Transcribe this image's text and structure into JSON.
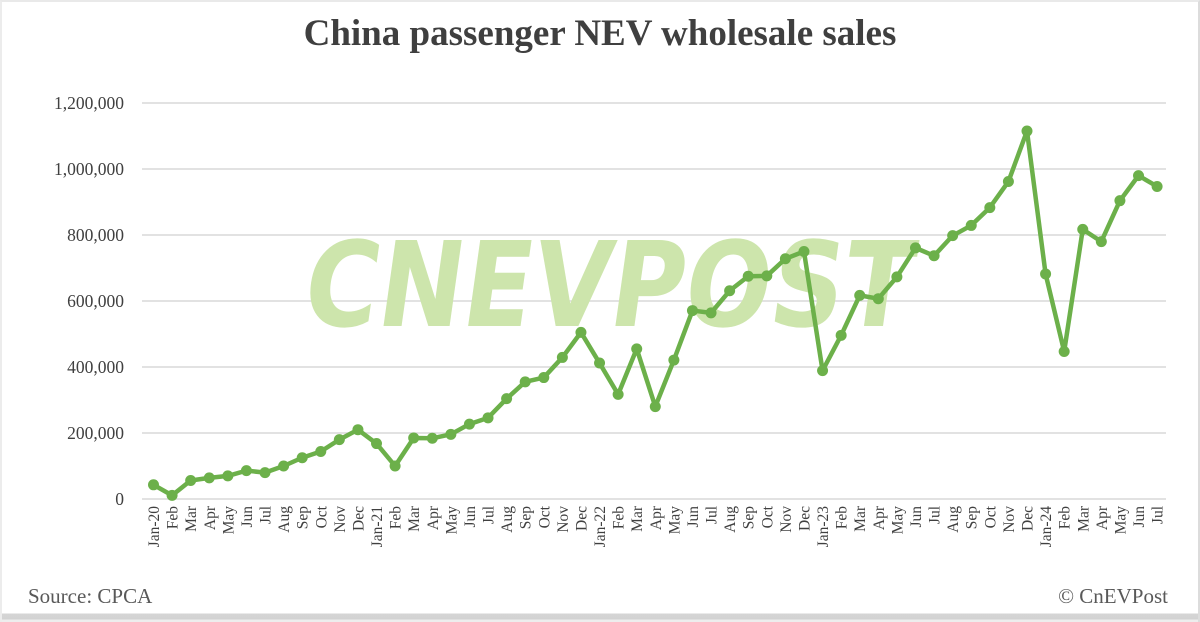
{
  "title": "China passenger NEV wholesale sales",
  "watermark": "CNEVPOST",
  "footer": {
    "source": "Source: CPCA",
    "credit": "© CnEVPost"
  },
  "colors": {
    "line": "#6CB04A",
    "marker": "#6CB04A",
    "watermark": "#CDE5AC",
    "gridline": "#D9D9D9",
    "title_text": "#3F3F3F",
    "axis_text": "#404040",
    "footer_text": "#595959"
  },
  "chart_data": {
    "type": "line",
    "title": "China passenger NEV wholesale sales",
    "xlabel": "",
    "ylabel": "",
    "ylim": [
      0,
      1200000
    ],
    "y_ticks": [
      0,
      200000,
      400000,
      600000,
      800000,
      1000000,
      1200000
    ],
    "grid": true,
    "legend_position": "none",
    "marker": "circle",
    "x_labels": [
      "Jan-20",
      "Feb",
      "Mar",
      "Apr",
      "May",
      "Jun",
      "Jul",
      "Aug",
      "Sep",
      "Oct",
      "Nov",
      "Dec",
      "Jan-21",
      "Feb",
      "Mar",
      "Apr",
      "May",
      "Jun",
      "Jul",
      "Aug",
      "Sep",
      "Oct",
      "Nov",
      "Dec",
      "Jan-22",
      "Feb",
      "Mar",
      "Apr",
      "May",
      "Jun",
      "Jul",
      "Aug",
      "Sep",
      "Oct",
      "Nov",
      "Dec",
      "Jan-23",
      "Feb",
      "Mar",
      "Apr",
      "May",
      "Jun",
      "Jul",
      "Aug",
      "Sep",
      "Oct",
      "Nov",
      "Dec",
      "Jan-24",
      "Feb",
      "Mar",
      "Apr",
      "May",
      "Jun",
      "Jul"
    ],
    "values": [
      43000,
      11000,
      56000,
      64000,
      70000,
      86000,
      80000,
      100000,
      125000,
      144000,
      180000,
      210000,
      168000,
      100000,
      185000,
      184000,
      196000,
      227000,
      246000,
      304000,
      355000,
      368000,
      429000,
      505000,
      412000,
      317000,
      455000,
      280000,
      421000,
      571000,
      564000,
      631000,
      675000,
      676000,
      728000,
      750000,
      389000,
      496000,
      617000,
      607000,
      673000,
      761000,
      737000,
      798000,
      829000,
      883000,
      962000,
      1115000,
      682000,
      447000,
      817000,
      780000,
      904000,
      980000,
      947000
    ]
  }
}
